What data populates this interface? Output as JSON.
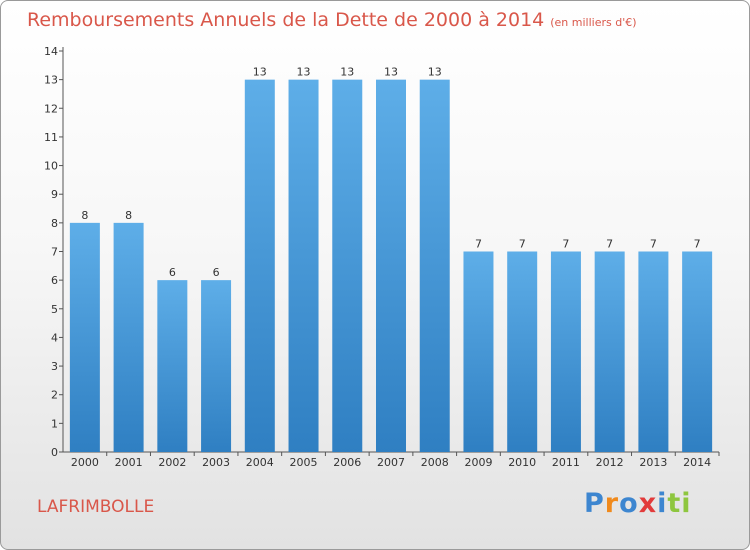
{
  "chart_data": {
    "type": "bar",
    "title": "Remboursements Annuels de la Dette de 2000 à 2014",
    "unit": "(en milliers d'€)",
    "categories": [
      "2000",
      "2001",
      "2002",
      "2003",
      "2004",
      "2005",
      "2006",
      "2007",
      "2008",
      "2009",
      "2010",
      "2011",
      "2012",
      "2013",
      "2014"
    ],
    "values": [
      8,
      8,
      6,
      6,
      13,
      13,
      13,
      13,
      13,
      7,
      7,
      7,
      7,
      7,
      7
    ],
    "ylim": [
      0,
      14
    ],
    "yticks": [
      0,
      1,
      2,
      3,
      4,
      5,
      6,
      7,
      8,
      9,
      10,
      11,
      12,
      13,
      14
    ],
    "grid": false,
    "bar_color": "#4f9edc"
  },
  "location": "LAFRIMBOLLE",
  "logo": {
    "letters": [
      "P",
      "r",
      "o",
      "x",
      "i",
      "ti"
    ]
  }
}
